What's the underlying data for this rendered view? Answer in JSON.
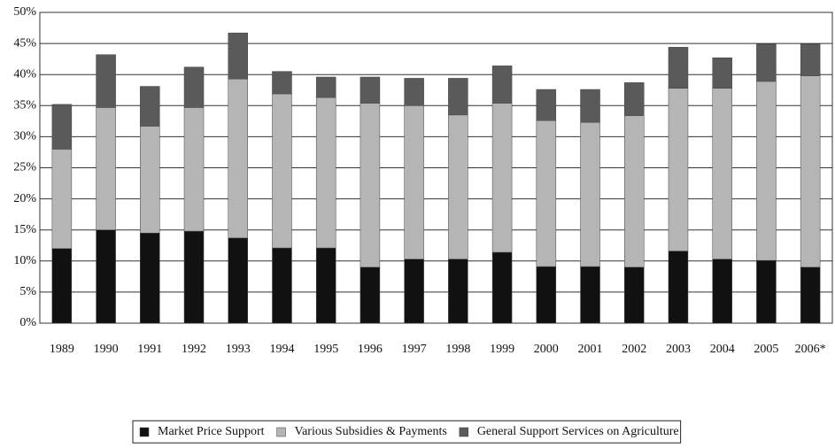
{
  "chart_data": {
    "type": "stacked-bar",
    "categories": [
      "1989",
      "1990",
      "1991",
      "1992",
      "1993",
      "1994",
      "1995",
      "1996",
      "1997",
      "1998",
      "1999",
      "2000",
      "2001",
      "2002",
      "2003",
      "2004",
      "2005",
      "2006*"
    ],
    "series": [
      {
        "name": "Market Price Support",
        "color": "#111111",
        "values": [
          12.0,
          15.0,
          14.5,
          14.8,
          13.7,
          12.1,
          12.1,
          9.0,
          10.3,
          10.3,
          11.4,
          9.1,
          9.1,
          9.0,
          11.6,
          10.3,
          10.1,
          9.0
        ]
      },
      {
        "name": "Various Subsidies & Payments",
        "color": "#b5b5b5",
        "values": [
          16.0,
          19.7,
          17.2,
          19.9,
          25.6,
          24.8,
          24.2,
          26.4,
          24.7,
          23.2,
          24.0,
          23.5,
          23.2,
          24.4,
          26.2,
          27.5,
          28.8,
          30.8
        ]
      },
      {
        "name": "General Support Services on Agriculture",
        "color": "#5a5a5a",
        "values": [
          7.2,
          8.5,
          6.4,
          6.5,
          7.4,
          3.6,
          3.3,
          4.2,
          4.4,
          5.9,
          6.0,
          5.0,
          5.3,
          5.3,
          6.6,
          4.9,
          6.0,
          5.1
        ]
      }
    ],
    "ylim": [
      0,
      50
    ],
    "yticks": [
      {
        "value": 0,
        "label": "0%"
      },
      {
        "value": 5,
        "label": "5%"
      },
      {
        "value": 10,
        "label": "10%"
      },
      {
        "value": 15,
        "label": "15%"
      },
      {
        "value": 20,
        "label": "20%"
      },
      {
        "value": 25,
        "label": "25%"
      },
      {
        "value": 30,
        "label": "30%"
      },
      {
        "value": 35,
        "label": "35%"
      },
      {
        "value": 40,
        "label": "40%"
      },
      {
        "value": 45,
        "label": "45%"
      },
      {
        "value": 50,
        "label": "50%"
      }
    ],
    "grid": true
  }
}
